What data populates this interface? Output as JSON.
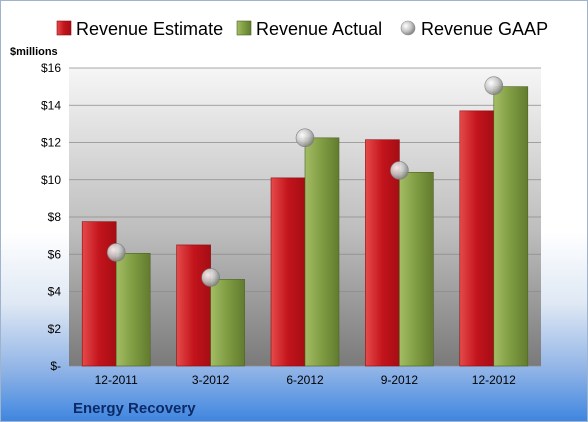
{
  "chart_data": {
    "type": "bar",
    "categories": [
      "12-2011",
      "3-2012",
      "6-2012",
      "9-2012",
      "12-2012"
    ],
    "series": [
      {
        "name": "Revenue Estimate",
        "type": "bar",
        "color": "#cc1f2a",
        "values": [
          7.75,
          6.5,
          10.1,
          12.15,
          13.7
        ]
      },
      {
        "name": "Revenue Actual",
        "type": "bar",
        "color": "#7f9c42",
        "values": [
          6.05,
          4.65,
          12.25,
          10.4,
          15.0
        ]
      },
      {
        "name": "Revenue GAAP",
        "type": "marker",
        "color": "#a8a8a8",
        "values": [
          6.1,
          4.75,
          12.25,
          10.5,
          15.05
        ]
      }
    ],
    "y_ticks": [
      "$-",
      "$2",
      "$4",
      "$6",
      "$8",
      "$10",
      "$12",
      "$14",
      "$16"
    ],
    "ylim": [
      0,
      16
    ],
    "ylabel": "$millions",
    "xlabel": "",
    "title": "",
    "company": "Energy Recovery",
    "grid": true,
    "legend_position": "top"
  }
}
